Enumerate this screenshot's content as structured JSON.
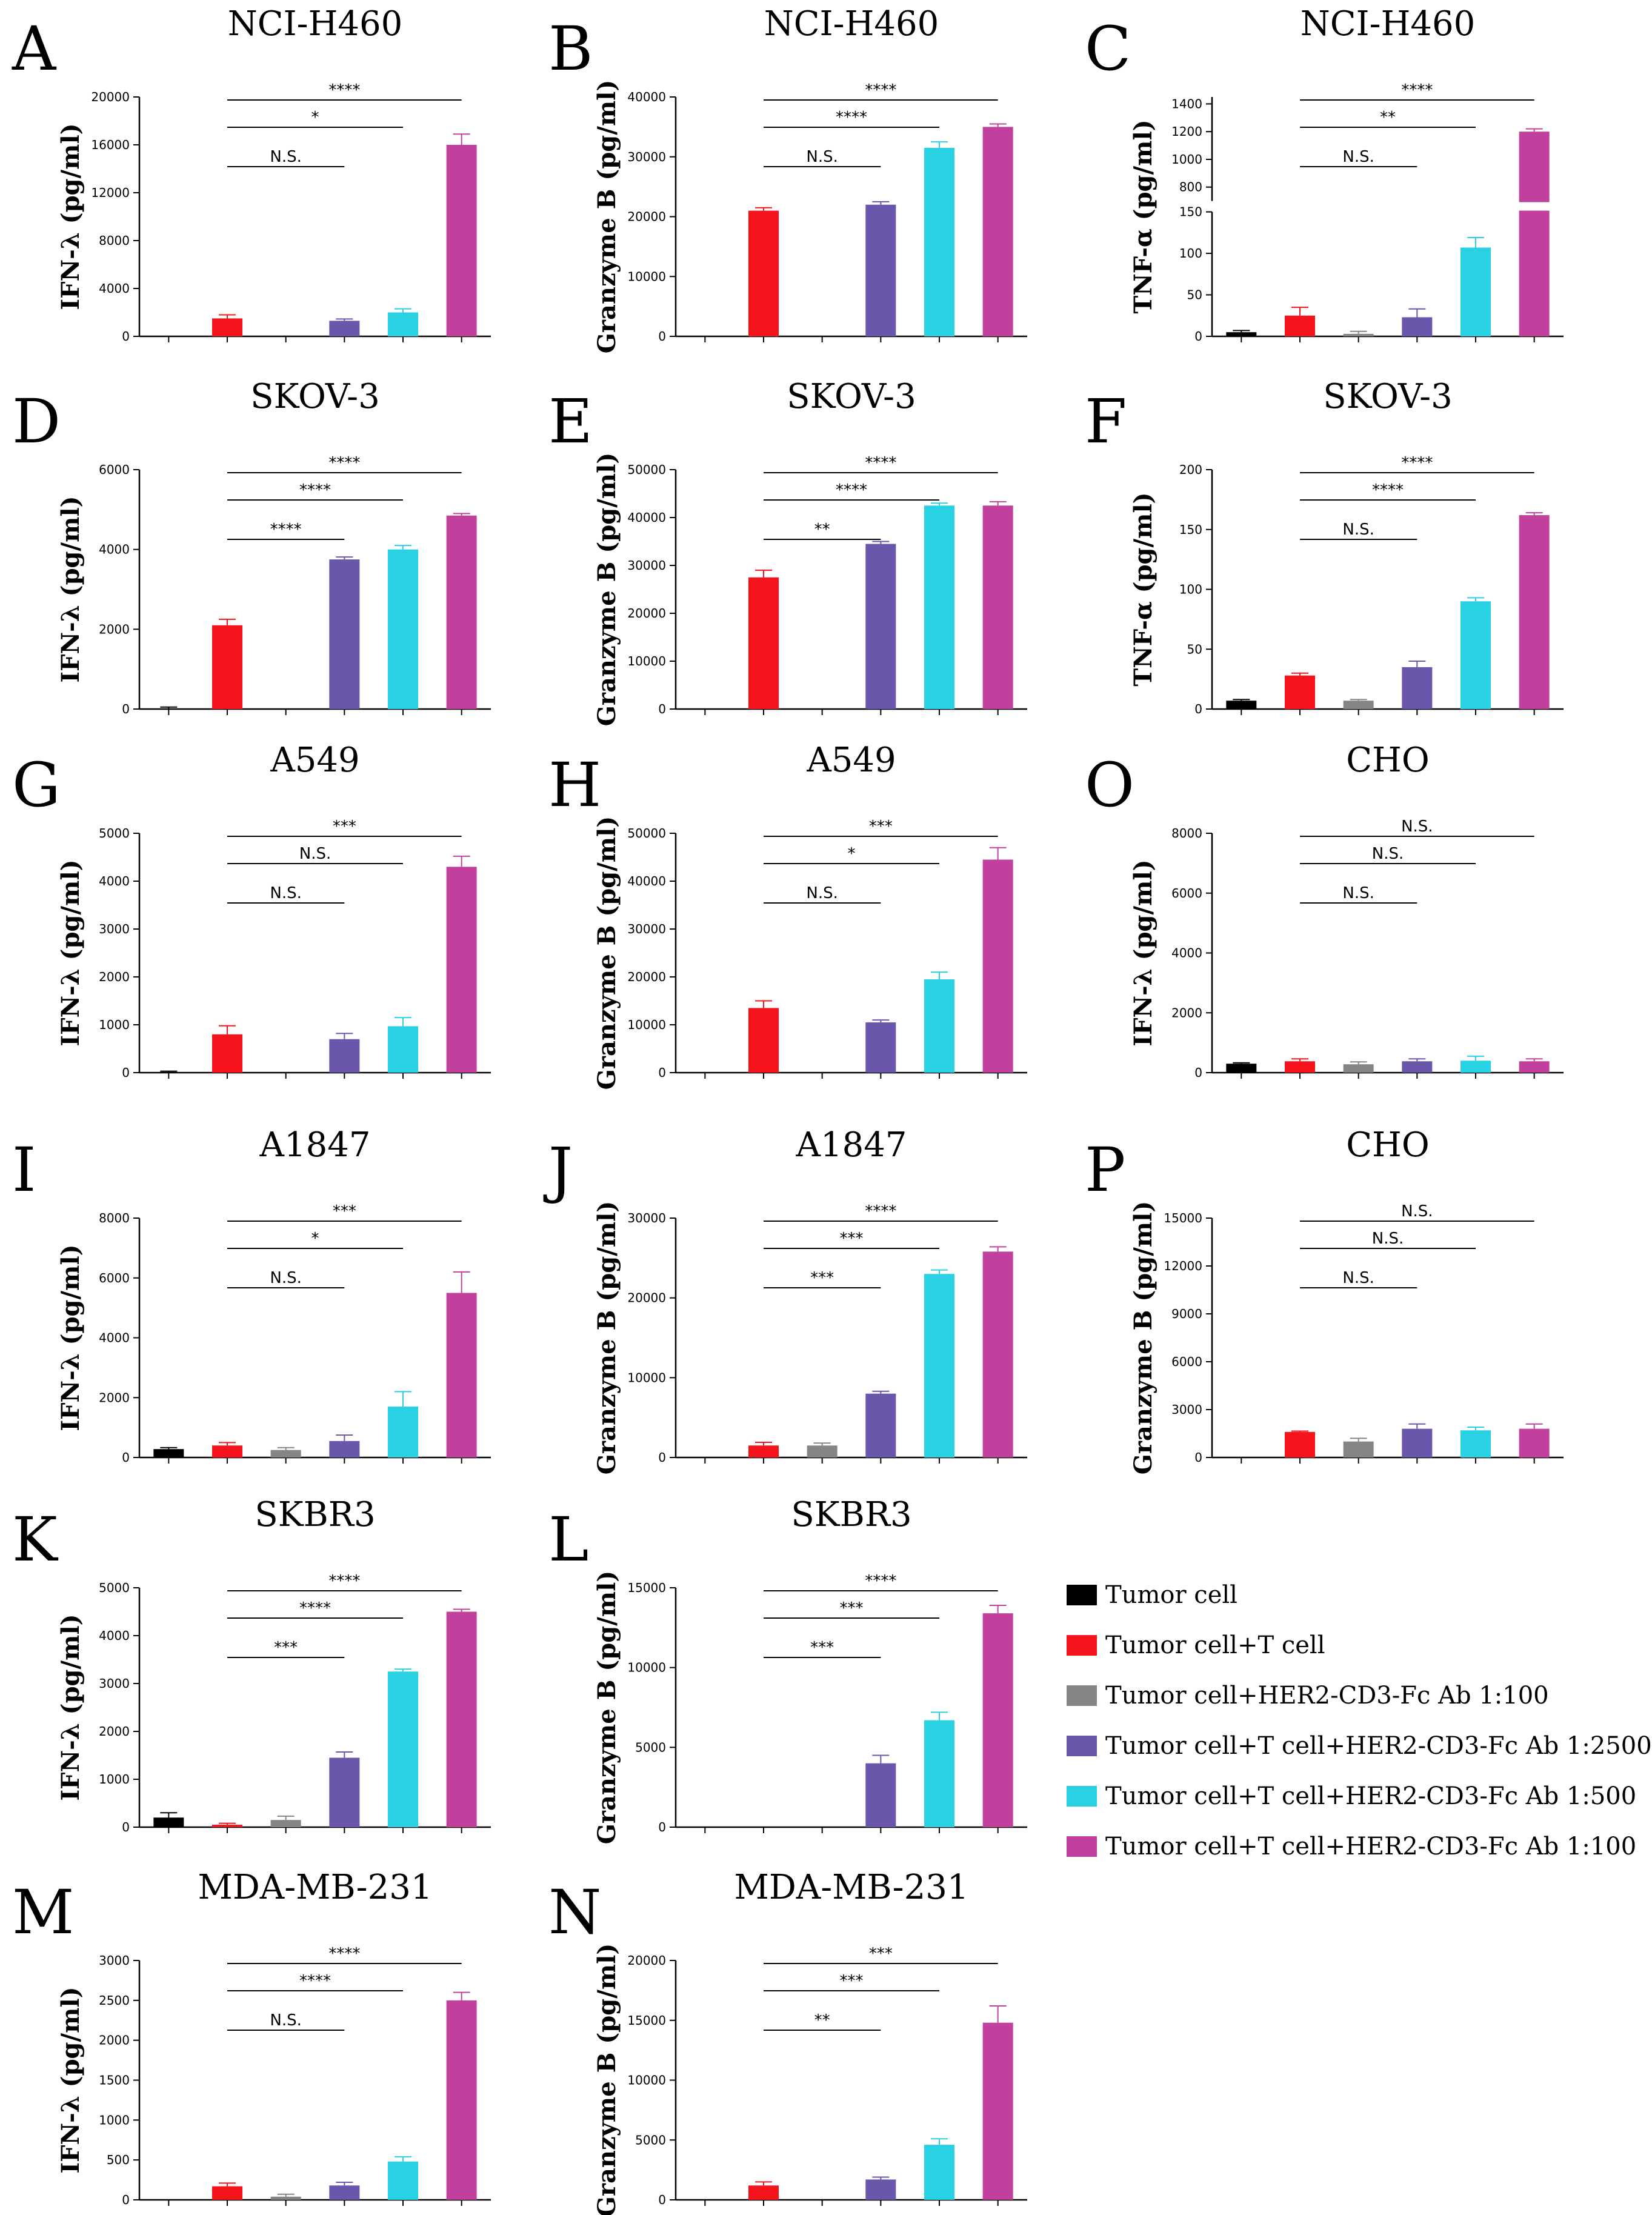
{
  "colors": [
    "#000000",
    "#f5141c",
    "#858585",
    "#6a56aa",
    "#29d2e3",
    "#c2409d"
  ],
  "legend": {
    "items": [
      {
        "label": "Tumor cell"
      },
      {
        "label": "Tumor cell+T cell"
      },
      {
        "label": "Tumor cell+HER2-CD3-Fc Ab 1:100"
      },
      {
        "label": "Tumor cell+T cell+HER2-CD3-Fc Ab 1:2500"
      },
      {
        "label": "Tumor cell+T cell+HER2-CD3-Fc Ab 1:500"
      },
      {
        "label": "Tumor cell+T cell+HER2-CD3-Fc Ab 1:100"
      }
    ]
  },
  "chart_data": [
    {
      "panel": "A",
      "type": "bar",
      "title": "NCI-H460",
      "ylabel": "IFN-λ (pg/ml)",
      "ylim": [
        0,
        20000
      ],
      "yticks": [
        0,
        4000,
        8000,
        12000,
        16000,
        20000
      ],
      "values": [
        0,
        1500,
        0,
        1300,
        2000,
        16000
      ],
      "errors": [
        0,
        300,
        0,
        150,
        300,
        900
      ],
      "sig": [
        {
          "from": 1,
          "to": 5,
          "label": "****"
        },
        {
          "from": 1,
          "to": 4,
          "label": "*"
        },
        {
          "from": 1,
          "to": 3,
          "label": "N.S."
        }
      ]
    },
    {
      "panel": "B",
      "type": "bar",
      "title": "NCI-H460",
      "ylabel": "Granzyme B (pg/ml)",
      "ylim": [
        0,
        40000
      ],
      "yticks": [
        0,
        10000,
        20000,
        30000,
        40000
      ],
      "values": [
        0,
        21000,
        0,
        22000,
        31500,
        35000
      ],
      "errors": [
        0,
        500,
        0,
        500,
        1000,
        500
      ],
      "sig": [
        {
          "from": 1,
          "to": 5,
          "label": "****"
        },
        {
          "from": 1,
          "to": 4,
          "label": "****"
        },
        {
          "from": 1,
          "to": 3,
          "label": "N.S."
        }
      ]
    },
    {
      "panel": "C",
      "type": "bar",
      "title": "NCI-H460",
      "ylabel": "TNF-α (pg/ml)",
      "broken": true,
      "ylim": [
        0,
        150
      ],
      "ylim_upper": [
        700,
        1450
      ],
      "yticks": [
        0,
        50,
        100,
        150
      ],
      "yticks_upper": [
        800,
        1000,
        1200,
        1400
      ],
      "values": [
        5,
        25,
        3,
        23,
        107,
        1200
      ],
      "errors": [
        2,
        10,
        3,
        10,
        12,
        20
      ],
      "sig": [
        {
          "from": 1,
          "to": 5,
          "label": "****"
        },
        {
          "from": 1,
          "to": 4,
          "label": "**"
        },
        {
          "from": 1,
          "to": 3,
          "label": "N.S."
        }
      ]
    },
    {
      "panel": "D",
      "type": "bar",
      "title": "SKOV-3",
      "ylabel": "IFN-λ (pg/ml)",
      "ylim": [
        0,
        6000
      ],
      "yticks": [
        0,
        2000,
        4000,
        6000
      ],
      "values": [
        0,
        2100,
        0,
        3750,
        4000,
        4850
      ],
      "errors": [
        50,
        150,
        0,
        60,
        100,
        50
      ],
      "sig": [
        {
          "from": 1,
          "to": 5,
          "label": "****"
        },
        {
          "from": 1,
          "to": 4,
          "label": "****"
        },
        {
          "from": 1,
          "to": 3,
          "label": "****"
        }
      ]
    },
    {
      "panel": "E",
      "type": "bar",
      "title": "SKOV-3",
      "ylabel": "Granzyme B (pg/ml)",
      "ylim": [
        0,
        50000
      ],
      "yticks": [
        0,
        10000,
        20000,
        30000,
        40000,
        50000
      ],
      "values": [
        0,
        27500,
        0,
        34500,
        42500,
        42500
      ],
      "errors": [
        0,
        1500,
        0,
        500,
        500,
        800
      ],
      "sig": [
        {
          "from": 1,
          "to": 5,
          "label": "****"
        },
        {
          "from": 1,
          "to": 4,
          "label": "****"
        },
        {
          "from": 1,
          "to": 3,
          "label": "**"
        }
      ]
    },
    {
      "panel": "F",
      "type": "bar",
      "title": "SKOV-3",
      "ylabel": "TNF-α (pg/ml)",
      "ylim": [
        0,
        200
      ],
      "yticks": [
        0,
        50,
        100,
        150,
        200
      ],
      "values": [
        7,
        28,
        7,
        35,
        90,
        162
      ],
      "errors": [
        1,
        2,
        1,
        5,
        3,
        2
      ],
      "sig": [
        {
          "from": 1,
          "to": 5,
          "label": "****"
        },
        {
          "from": 1,
          "to": 4,
          "label": "****"
        },
        {
          "from": 1,
          "to": 3,
          "label": "N.S."
        }
      ]
    },
    {
      "panel": "G",
      "type": "bar",
      "title": "A549",
      "ylabel": "IFN-λ (pg/ml)",
      "ylim": [
        0,
        5000
      ],
      "yticks": [
        0,
        1000,
        2000,
        3000,
        4000,
        5000
      ],
      "values": [
        0,
        800,
        0,
        700,
        970,
        4300
      ],
      "errors": [
        30,
        180,
        0,
        120,
        180,
        220
      ],
      "sig": [
        {
          "from": 1,
          "to": 5,
          "label": "***"
        },
        {
          "from": 1,
          "to": 4,
          "label": "N.S."
        },
        {
          "from": 1,
          "to": 3,
          "label": "N.S."
        }
      ]
    },
    {
      "panel": "H",
      "type": "bar",
      "title": "A549",
      "ylabel": "Granzyme B (pg/ml)",
      "ylim": [
        0,
        50000
      ],
      "yticks": [
        0,
        10000,
        20000,
        30000,
        40000,
        50000
      ],
      "values": [
        0,
        13500,
        0,
        10500,
        19500,
        44500
      ],
      "errors": [
        0,
        1500,
        0,
        500,
        1500,
        2500
      ],
      "sig": [
        {
          "from": 1,
          "to": 5,
          "label": "***"
        },
        {
          "from": 1,
          "to": 4,
          "label": "*"
        },
        {
          "from": 1,
          "to": 3,
          "label": "N.S."
        }
      ]
    },
    {
      "panel": "O",
      "type": "bar",
      "title": "CHO",
      "ylabel": "IFN-λ (pg/ml)",
      "ylim": [
        0,
        8000
      ],
      "yticks": [
        0,
        2000,
        4000,
        6000,
        8000
      ],
      "values": [
        300,
        380,
        280,
        380,
        400,
        380
      ],
      "errors": [
        30,
        80,
        80,
        80,
        150,
        80
      ],
      "sig": [
        {
          "from": 1,
          "to": 5,
          "label": "N.S."
        },
        {
          "from": 1,
          "to": 4,
          "label": "N.S."
        },
        {
          "from": 1,
          "to": 3,
          "label": "N.S."
        }
      ]
    },
    {
      "panel": "I",
      "type": "bar",
      "title": "A1847",
      "ylabel": "IFN-λ (pg/ml)",
      "ylim": [
        0,
        8000
      ],
      "yticks": [
        0,
        2000,
        4000,
        6000,
        8000
      ],
      "values": [
        280,
        400,
        250,
        550,
        1700,
        5500
      ],
      "errors": [
        50,
        100,
        80,
        200,
        500,
        700
      ],
      "sig": [
        {
          "from": 1,
          "to": 5,
          "label": "***"
        },
        {
          "from": 1,
          "to": 4,
          "label": "*"
        },
        {
          "from": 1,
          "to": 3,
          "label": "N.S."
        }
      ]
    },
    {
      "panel": "J",
      "type": "bar",
      "title": "A1847",
      "ylabel": "Granzyme B (pg/ml)",
      "ylim": [
        0,
        30000
      ],
      "yticks": [
        0,
        10000,
        20000,
        30000
      ],
      "values": [
        0,
        1500,
        1500,
        8000,
        23000,
        25800
      ],
      "errors": [
        0,
        400,
        300,
        300,
        500,
        600
      ],
      "sig": [
        {
          "from": 1,
          "to": 5,
          "label": "****"
        },
        {
          "from": 1,
          "to": 4,
          "label": "***"
        },
        {
          "from": 1,
          "to": 3,
          "label": "***"
        }
      ]
    },
    {
      "panel": "P",
      "type": "bar",
      "title": "CHO",
      "ylabel": "Granzyme B (pg/ml)",
      "ylim": [
        0,
        15000
      ],
      "yticks": [
        0,
        3000,
        6000,
        9000,
        12000,
        15000
      ],
      "values": [
        0,
        1600,
        1000,
        1800,
        1700,
        1800
      ],
      "errors": [
        0,
        50,
        200,
        300,
        200,
        300
      ],
      "sig": [
        {
          "from": 1,
          "to": 5,
          "label": "N.S."
        },
        {
          "from": 1,
          "to": 4,
          "label": "N.S."
        },
        {
          "from": 1,
          "to": 3,
          "label": "N.S."
        }
      ]
    },
    {
      "panel": "K",
      "type": "bar",
      "title": "SKBR3",
      "ylabel": "IFN-λ (pg/ml)",
      "ylim": [
        0,
        5000
      ],
      "yticks": [
        0,
        1000,
        2000,
        3000,
        4000,
        5000
      ],
      "values": [
        200,
        50,
        150,
        1450,
        3250,
        4500
      ],
      "errors": [
        100,
        30,
        80,
        120,
        50,
        50
      ],
      "sig": [
        {
          "from": 1,
          "to": 5,
          "label": "****"
        },
        {
          "from": 1,
          "to": 4,
          "label": "****"
        },
        {
          "from": 1,
          "to": 3,
          "label": "***"
        }
      ]
    },
    {
      "panel": "L",
      "type": "bar",
      "title": "SKBR3",
      "ylabel": "Granzyme B (pg/ml)",
      "ylim": [
        0,
        15000
      ],
      "yticks": [
        0,
        5000,
        10000,
        15000
      ],
      "values": [
        0,
        0,
        0,
        4000,
        6700,
        13400
      ],
      "errors": [
        0,
        0,
        0,
        500,
        500,
        500
      ],
      "sig": [
        {
          "from": 1,
          "to": 5,
          "label": "****"
        },
        {
          "from": 1,
          "to": 4,
          "label": "***"
        },
        {
          "from": 1,
          "to": 3,
          "label": "***"
        }
      ]
    },
    {
      "panel": "M",
      "type": "bar",
      "title": "MDA-MB-231",
      "ylabel": "IFN-λ (pg/ml)",
      "ylim": [
        0,
        3000
      ],
      "yticks": [
        0,
        500,
        1000,
        1500,
        2000,
        2500,
        3000
      ],
      "values": [
        0,
        170,
        40,
        180,
        480,
        2500
      ],
      "errors": [
        0,
        40,
        30,
        40,
        60,
        100
      ],
      "sig": [
        {
          "from": 1,
          "to": 5,
          "label": "****"
        },
        {
          "from": 1,
          "to": 4,
          "label": "****"
        },
        {
          "from": 1,
          "to": 3,
          "label": "N.S."
        }
      ]
    },
    {
      "panel": "N",
      "type": "bar",
      "title": "MDA-MB-231",
      "ylabel": "Granzyme B (pg/ml)",
      "ylim": [
        0,
        20000
      ],
      "yticks": [
        0,
        5000,
        10000,
        15000,
        20000
      ],
      "values": [
        0,
        1200,
        0,
        1700,
        4600,
        14800
      ],
      "errors": [
        0,
        300,
        0,
        200,
        500,
        1400
      ],
      "sig": [
        {
          "from": 1,
          "to": 5,
          "label": "***"
        },
        {
          "from": 1,
          "to": 4,
          "label": "***"
        },
        {
          "from": 1,
          "to": 3,
          "label": "**"
        }
      ]
    }
  ]
}
